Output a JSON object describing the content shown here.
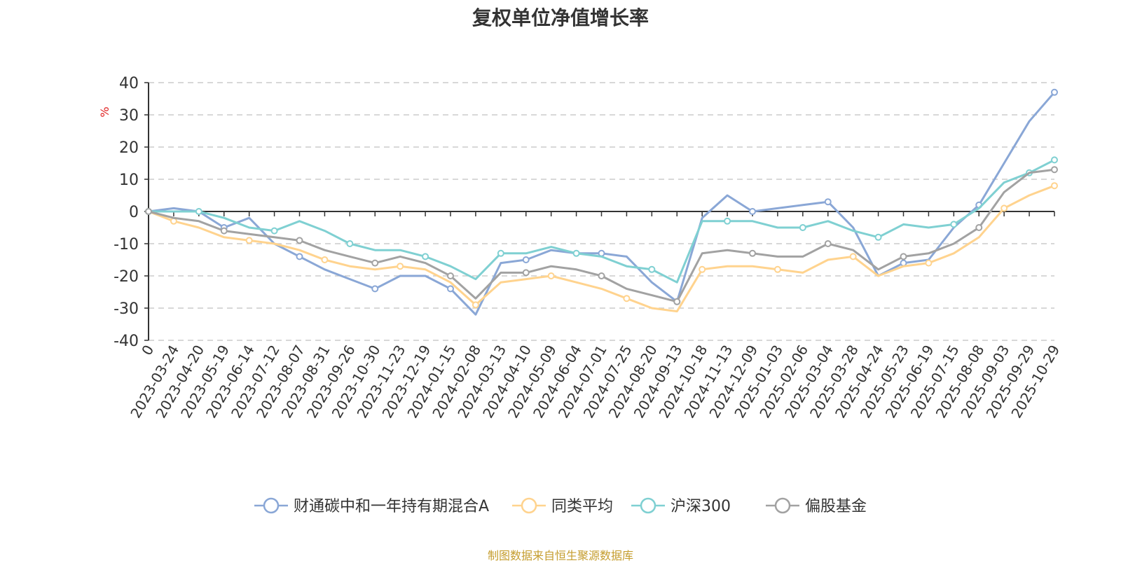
{
  "chart_data": {
    "type": "line",
    "title": "复权单位净值增长率",
    "ylabel": "%",
    "xlabel": "",
    "ylim": [
      -40,
      40
    ],
    "yticks": [
      -40,
      -30,
      -20,
      -10,
      0,
      10,
      20,
      30,
      40
    ],
    "grid": true,
    "legend_position": "bottom-center",
    "categories": [
      "0",
      "2023-03-24",
      "2023-04-20",
      "2023-05-19",
      "2023-06-14",
      "2023-07-12",
      "2023-08-07",
      "2023-08-31",
      "2023-09-26",
      "2023-10-30",
      "2023-11-23",
      "2023-12-19",
      "2024-01-15",
      "2024-02-08",
      "2024-03-13",
      "2024-04-10",
      "2024-05-09",
      "2024-06-04",
      "2024-07-01",
      "2024-07-25",
      "2024-08-20",
      "2024-09-13",
      "2024-10-18",
      "2024-11-13",
      "2024-12-09",
      "2025-01-03",
      "2025-02-06",
      "2025-03-04",
      "2025-03-28",
      "2025-04-24",
      "2025-05-23",
      "2025-06-19",
      "2025-07-15",
      "2025-08-08",
      "2025-09-03",
      "2025-09-29",
      "2025-10-29"
    ],
    "series": [
      {
        "name": "财通碳中和一年持有期混合A",
        "color": "#8aa7d6",
        "values": [
          0,
          1,
          0,
          -5,
          -2,
          -10,
          -14,
          -18,
          -21,
          -24,
          -20,
          -20,
          -24,
          -32,
          -16,
          -15,
          -12,
          -13,
          -13,
          -14,
          -22,
          -28,
          -2,
          5,
          0,
          1,
          2,
          3,
          -5,
          -20,
          -16,
          -15,
          -5,
          2,
          15,
          28,
          37
        ]
      },
      {
        "name": "同类平均",
        "color": "#ffd38e",
        "values": [
          0,
          -3,
          -5,
          -8,
          -9,
          -10,
          -12,
          -15,
          -17,
          -18,
          -17,
          -18,
          -22,
          -29,
          -22,
          -21,
          -20,
          -22,
          -24,
          -27,
          -30,
          -31,
          -18,
          -17,
          -17,
          -18,
          -19,
          -15,
          -14,
          -20,
          -17,
          -16,
          -13,
          -8,
          1,
          5,
          8
        ]
      },
      {
        "name": "沪深300",
        "color": "#7fd0d2",
        "values": [
          0,
          0,
          0,
          -2,
          -5,
          -6,
          -3,
          -6,
          -10,
          -12,
          -12,
          -14,
          -17,
          -21,
          -13,
          -13,
          -11,
          -13,
          -14,
          -17,
          -18,
          -22,
          -3,
          -3,
          -3,
          -5,
          -5,
          -3,
          -6,
          -8,
          -4,
          -5,
          -4,
          1,
          9,
          12,
          16
        ]
      },
      {
        "name": "偏股基金",
        "color": "#a2a2a2",
        "values": [
          0,
          -2,
          -3,
          -6,
          -7,
          -8,
          -9,
          -12,
          -14,
          -16,
          -14,
          -16,
          -20,
          -27,
          -19,
          -19,
          -17,
          -18,
          -20,
          -24,
          -26,
          -28,
          -13,
          -12,
          -13,
          -14,
          -14,
          -10,
          -12,
          -18,
          -14,
          -13,
          -10,
          -5,
          6,
          12,
          13
        ]
      }
    ]
  },
  "source_note": "制图数据来自恒生聚源数据库"
}
